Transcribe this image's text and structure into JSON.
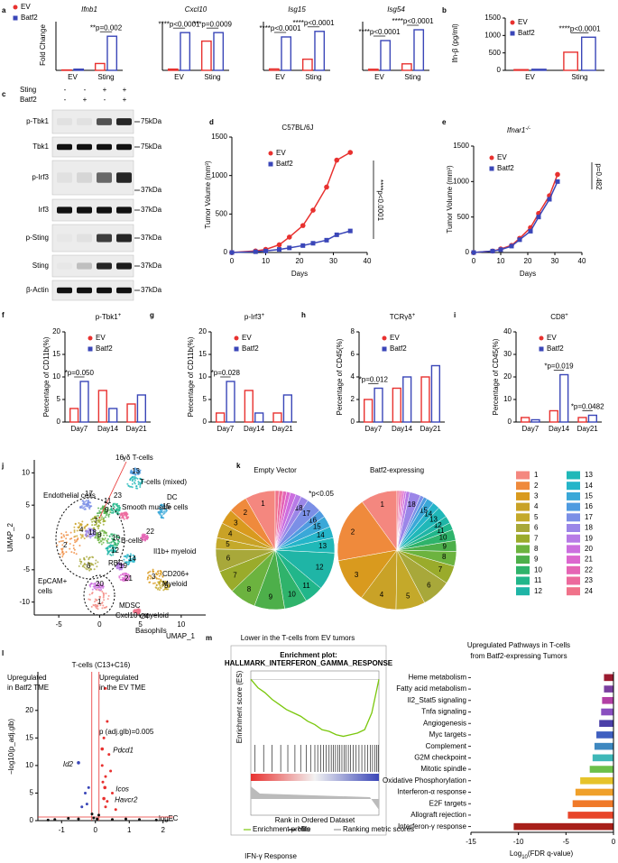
{
  "series_colors": [
    "#e8312f",
    "#3a46b8"
  ],
  "legend": [
    "EV",
    "Batf2"
  ],
  "panel_letters": [
    "a",
    "b",
    "c",
    "d",
    "e",
    "f",
    "g",
    "h",
    "i",
    "j",
    "k",
    "l",
    "m"
  ],
  "a": {
    "ylabel": "Fold Change",
    "groups": [
      "EV",
      "Sting"
    ],
    "plots": [
      {
        "title": "Ifnb1",
        "ylim": [
          0,
          2500
        ],
        "values": [
          [
            20,
            60
          ],
          [
            350,
            1750
          ]
        ],
        "p": [
          null,
          "**p=0.002"
        ]
      },
      {
        "title": "Cxcl10",
        "ylim": [
          0,
          80
        ],
        "values": [
          [
            2,
            62
          ],
          [
            48,
            62
          ]
        ],
        "p": [
          "****p<0.0001",
          "***p=0.0009"
        ]
      },
      {
        "title": "Isg15",
        "ylim": [
          0,
          35
        ],
        "values": [
          [
            1,
            24
          ],
          [
            8,
            28
          ]
        ],
        "p": [
          "****p<0.0001",
          "****p<0.0001"
        ]
      },
      {
        "title": "Isg54",
        "ylim": [
          0,
          90
        ],
        "values": [
          [
            2,
            55
          ],
          [
            12,
            75
          ]
        ],
        "p": [
          "****p<0.0001",
          "****p<0.0001"
        ]
      }
    ]
  },
  "b": {
    "ylabel": "Ifn-β (pg/ml)",
    "groups": [
      "EV",
      "Sting"
    ],
    "ylim": [
      0,
      1500
    ],
    "yticks": [
      0,
      500,
      1000,
      1500
    ],
    "values": [
      [
        20,
        30
      ],
      [
        520,
        950
      ]
    ],
    "p": [
      null,
      "****p<0.0001"
    ]
  },
  "c": {
    "treatments": [
      {
        "name": "Sting",
        "signs": [
          "-",
          "-",
          "+",
          "+"
        ]
      },
      {
        "name": "Batf2",
        "signs": [
          "-",
          "+",
          "-",
          "+"
        ]
      }
    ],
    "rows": [
      {
        "name": "p-Tbk1",
        "kda": "75kDa"
      },
      {
        "name": "Tbk1",
        "kda": "75kDa"
      },
      {
        "name": "p-Irf3",
        "kda": "37kDa"
      },
      {
        "name": "Irf3",
        "kda": "37kDa"
      },
      {
        "name": "p-Sting",
        "kda": "37kDa"
      },
      {
        "name": "Sting",
        "kda": "37kDa"
      },
      {
        "name": "β-Actin",
        "kda": "37kDa"
      }
    ]
  },
  "d": {
    "type": "line",
    "title": "C57BL/6J",
    "ylabel": "Tumor Volume (mm³)",
    "xlabel": "Days",
    "x": [
      0,
      7,
      10,
      14,
      17,
      21,
      24,
      28,
      31,
      35
    ],
    "series": [
      {
        "name": "EV",
        "values": [
          0,
          20,
          40,
          100,
          200,
          350,
          550,
          850,
          1200,
          1300
        ]
      },
      {
        "name": "Batf2",
        "values": [
          0,
          10,
          20,
          40,
          60,
          90,
          120,
          160,
          230,
          280
        ]
      }
    ],
    "xlim": [
      0,
      40
    ],
    "xticks": [
      0,
      10,
      20,
      30,
      40
    ],
    "ylim": [
      0,
      1500
    ],
    "yticks": [
      0,
      500,
      1000,
      1500
    ],
    "p": "****p<0.0001"
  },
  "e": {
    "type": "line",
    "title": "Ifnar1",
    "title_sup": "-/-",
    "ylabel": "Tumor Volume (mm³)",
    "xlabel": "Days",
    "x": [
      0,
      7,
      10,
      14,
      17,
      21,
      24,
      28,
      31
    ],
    "series": [
      {
        "name": "EV",
        "values": [
          0,
          20,
          50,
          100,
          200,
          350,
          550,
          800,
          1100
        ]
      },
      {
        "name": "Batf2",
        "values": [
          0,
          20,
          40,
          90,
          180,
          300,
          500,
          750,
          1000
        ]
      }
    ],
    "xlim": [
      0,
      40
    ],
    "xticks": [
      0,
      10,
      20,
      30,
      40
    ],
    "ylim": [
      0,
      1500
    ],
    "yticks": [
      0,
      500,
      1000,
      1500
    ],
    "p": "p=0.482"
  },
  "f": {
    "type": "bar",
    "title": "p-Tbk1",
    "title_sup": "+",
    "ylabel": "Percentage of CD11b(%)",
    "groups": [
      "Day7",
      "Day14",
      "Day21"
    ],
    "ylim": [
      0,
      20
    ],
    "yticks": [
      0,
      5,
      10,
      15,
      20
    ],
    "values": [
      [
        3,
        9
      ],
      [
        7,
        3
      ],
      [
        4,
        6
      ]
    ],
    "p": [
      "*p=0.050",
      null,
      null
    ]
  },
  "g": {
    "type": "bar",
    "title": "p-Irf3",
    "title_sup": "+",
    "ylabel": "Percentage of CD11b(%)",
    "groups": [
      "Day7",
      "Day14",
      "Day21"
    ],
    "ylim": [
      0,
      20
    ],
    "yticks": [
      0,
      5,
      10,
      15,
      20
    ],
    "values": [
      [
        2,
        9
      ],
      [
        7,
        2
      ],
      [
        2,
        6
      ]
    ],
    "p": [
      "*p=0.028",
      null,
      null
    ]
  },
  "h": {
    "type": "bar",
    "title": "TCRγδ",
    "title_sup": "+",
    "ylabel": "Percentage of CD45(%)",
    "groups": [
      "Day7",
      "Day14",
      "Day21"
    ],
    "ylim": [
      0,
      8
    ],
    "yticks": [
      0,
      2,
      4,
      6,
      8
    ],
    "values": [
      [
        2,
        3
      ],
      [
        3,
        4
      ],
      [
        4,
        5
      ]
    ],
    "p": [
      "*p=0.012",
      null,
      null
    ]
  },
  "i": {
    "type": "bar",
    "title": "CD8",
    "title_sup": "+",
    "ylabel": "Percentage of CD45(%)",
    "groups": [
      "Day7",
      "Day14",
      "Day21"
    ],
    "ylim": [
      0,
      40
    ],
    "yticks": [
      0,
      10,
      20,
      30,
      40
    ],
    "values": [
      [
        2,
        1
      ],
      [
        5,
        21
      ],
      [
        2,
        3
      ]
    ],
    "p": [
      null,
      "*p=0.019",
      "*p=0.0482"
    ]
  },
  "j": {
    "ylabel": "UMAP_2",
    "xlabel": "UMAP_1",
    "xlim": [
      -8,
      13
    ],
    "ylim": [
      -12,
      12
    ],
    "xticks": [
      -5,
      0,
      5,
      10
    ],
    "yticks": [
      -10,
      -5,
      0,
      5,
      10
    ],
    "labels": [
      {
        "text": "γδ T-cells",
        "color": "#e8312f"
      },
      {
        "text": "T-cells (mixed)"
      },
      {
        "text": "Endothelial cells"
      },
      {
        "text": "Smooth muscle cells"
      },
      {
        "text": "DC"
      },
      {
        "text": "B-cells"
      },
      {
        "text": "Il1b+ myeloid"
      },
      {
        "text": "RBC"
      },
      {
        "text": "CD206+"
      },
      {
        "text": "Myeloid"
      },
      {
        "text": "Cxcl10+ myeloid",
        "color": "#e8312f"
      },
      {
        "text": "EpCAM+"
      },
      {
        "text": "cells"
      },
      {
        "text": "MDSC"
      },
      {
        "text": "Basophils"
      }
    ],
    "cluster_labels": [
      {
        "text": "16",
        "color": "#e8312f"
      },
      {
        "text": "13"
      },
      {
        "text": "17"
      },
      {
        "text": "23"
      },
      {
        "text": "11",
        "color": "#e8312f"
      },
      {
        "text": "7"
      },
      {
        "text": "9"
      },
      {
        "text": "8"
      },
      {
        "text": "18"
      },
      {
        "text": "10"
      },
      {
        "text": "2"
      },
      {
        "text": "12"
      },
      {
        "text": "4"
      },
      {
        "text": "6"
      },
      {
        "text": "22"
      },
      {
        "text": "14"
      },
      {
        "text": "15"
      },
      {
        "text": "3"
      },
      {
        "text": "5"
      },
      {
        "text": "20"
      },
      {
        "text": "1"
      },
      {
        "text": "24"
      },
      {
        "text": "21"
      },
      {
        "text": "19"
      }
    ]
  },
  "k": {
    "type": "pie",
    "titles": [
      "Empty Vector",
      "Batf2-expressing"
    ],
    "note": "*p<0.05",
    "clusters": [
      "1",
      "2",
      "3",
      "4",
      "5",
      "6",
      "7",
      "8",
      "9",
      "10",
      "11",
      "12",
      "13",
      "14",
      "15",
      "16",
      "17",
      "18",
      "19",
      "20",
      "21",
      "22",
      "23",
      "24"
    ],
    "colors": [
      "#f4877f",
      "#ef8a3c",
      "#d99a1e",
      "#c9a227",
      "#c4a92a",
      "#a8a83a",
      "#9aab2b",
      "#6cb33f",
      "#4daf4a",
      "#2fb36b",
      "#21b68a",
      "#1fb5a6",
      "#20b8b8",
      "#25b5c9",
      "#3aa8d8",
      "#4f9be0",
      "#7b8fe6",
      "#9b86e8",
      "#b77be6",
      "#cc6fdf",
      "#dc67cf",
      "#e565b5",
      "#ec6a9d",
      "#f0728a"
    ],
    "ev": [
      8,
      5,
      4,
      4,
      3,
      6,
      6,
      7,
      8,
      6,
      5,
      10,
      4,
      3,
      3,
      2,
      4,
      2,
      1.5,
      1.5,
      1,
      1,
      1,
      1
    ],
    "batf2": [
      10,
      18,
      12,
      10,
      8,
      8,
      5,
      4,
      3,
      3,
      2,
      2,
      3,
      2,
      2,
      1,
      1,
      3,
      1,
      0.5,
      0.5,
      0.5,
      0.5,
      0.5
    ]
  },
  "l": {
    "type": "scatter",
    "title": "T-cells (C13+C16)",
    "left": [
      "Upregulated",
      "in Batf2 TME"
    ],
    "right": [
      "Upregulated",
      "in the EV TME"
    ],
    "ylabel": "−log10(p_adj.glb)",
    "xlabel": "logFC",
    "note": "p (adj.glb)=0.005",
    "xlim": [
      -1.7,
      2.3
    ],
    "xticks": [
      -1,
      0,
      1,
      2
    ],
    "ylim": [
      0,
      27
    ],
    "yticks": [
      0,
      5,
      10,
      15,
      20
    ],
    "point_groups": [
      {
        "color": "#e8312f",
        "points": [
          [
            0.3,
            24
          ],
          [
            0.35,
            18
          ],
          [
            0.25,
            15
          ],
          [
            0.4,
            12
          ],
          [
            0.2,
            10
          ],
          [
            0.3,
            8
          ],
          [
            0.22,
            7
          ],
          [
            0.28,
            6
          ],
          [
            0.5,
            5
          ],
          [
            0.25,
            4
          ],
          [
            0.35,
            3.5
          ],
          [
            0.6,
            2
          ],
          [
            0.3,
            2.5
          ],
          [
            0.45,
            9
          ],
          [
            0.2,
            13
          ]
        ]
      },
      {
        "color": "#3a46b8",
        "points": [
          [
            -0.5,
            10.5
          ],
          [
            -0.3,
            5
          ],
          [
            -0.25,
            3
          ],
          [
            -0.4,
            2.5
          ],
          [
            -0.2,
            6
          ]
        ]
      },
      {
        "color": "#111111",
        "points": [
          [
            -0.05,
            0.5
          ],
          [
            0.05,
            0.3
          ],
          [
            -1.2,
            0.2
          ],
          [
            1.8,
            0.1
          ],
          [
            -0.8,
            0.4
          ],
          [
            0.9,
            0.3
          ],
          [
            0.1,
            1
          ],
          [
            -0.1,
            1.2
          ],
          [
            0.5,
            0.2
          ],
          [
            -0.5,
            0.3
          ],
          [
            1.3,
            0.2
          ],
          [
            -1.4,
            0.1
          ]
        ]
      }
    ],
    "genes": [
      {
        "name": "Id2",
        "x": -0.5,
        "y": 10.5,
        "color": "#3a46b8"
      },
      {
        "name": "Pdcd1",
        "x": 0.2,
        "y": 13,
        "color": "#e8312f"
      },
      {
        "name": "Icos",
        "x": 0.28,
        "y": 6,
        "color": "#e8312f"
      },
      {
        "name": "Havcr2",
        "x": 0.25,
        "y": 4,
        "color": "#e8312f"
      }
    ]
  },
  "m": {
    "heading": "Lower in the T-cells from EV tumors",
    "plot_title": "Enrichment plot:",
    "set": "HALLMARK_INTERFERON_GAMMA_RESPONSE",
    "ylabel": "Enrichment score (ES)",
    "xlabel": "Rank in Ordered Dataset",
    "legend": [
      "Enrichment profile",
      "Hits",
      "Ranking metric scores"
    ],
    "caption": "IFN-γ Response",
    "xlim": [
      0,
      9000
    ],
    "ylim": [
      -0.38,
      0.05
    ],
    "x": [
      0,
      500,
      1000,
      1500,
      2000,
      2500,
      3000,
      3500,
      4000,
      4500,
      5000,
      5500,
      6000,
      6500,
      7000,
      7500,
      8000,
      8500,
      9000
    ],
    "es": [
      0,
      -0.05,
      -0.08,
      -0.12,
      -0.15,
      -0.18,
      -0.2,
      -0.22,
      -0.25,
      -0.27,
      -0.3,
      -0.31,
      -0.33,
      -0.34,
      -0.33,
      -0.32,
      -0.3,
      -0.2,
      0
    ],
    "hits": [
      300,
      900,
      1500,
      2100,
      2600,
      3100,
      3500,
      3900,
      4200,
      4500,
      4700,
      4900,
      5100,
      5300,
      5500,
      5650,
      5800,
      5950,
      6100,
      6250,
      6400,
      6550,
      6700,
      6850,
      7000,
      7200,
      7400,
      7600,
      7800,
      8000,
      8200,
      8400,
      8550,
      8700,
      8850,
      8950
    ]
  },
  "n": {
    "type": "bar",
    "title": [
      "Upregulated Pathways in T-cells",
      "from Batf2-expressing Tumors"
    ],
    "categories": [
      "Heme metabolism",
      "Fatty acid metabolism",
      "Il2_Stat5 signaling",
      "Tnfa signaling",
      "Angiogenesis",
      "Myc targets",
      "Complement",
      "G2M checkpoint",
      "Mitotic spindle",
      "Oxidative Phosphorylation",
      "Interferon-α response",
      "E2F targets",
      "Allograft rejection",
      "Interferon-γ response"
    ],
    "values": [
      -1,
      -1,
      -1.2,
      -1.3,
      -1.5,
      -1.8,
      -2,
      -2.2,
      -2.5,
      -3.5,
      -4,
      -4.3,
      -4.8,
      -10.5
    ],
    "colors": [
      "#9b1b30",
      "#7a3fa0",
      "#b23fa5",
      "#8a4fc0",
      "#4b3fa8",
      "#3f5fc0",
      "#3f88c0",
      "#3fb8b8",
      "#6cc04a",
      "#e6c32a",
      "#f0a02a",
      "#f07a2a",
      "#e8452a",
      "#a8201a"
    ],
    "xlim": [
      -15,
      0
    ],
    "xticks": [
      -15,
      -10,
      -5,
      0
    ],
    "xlabel": [
      "Log",
      "10",
      "(FDR q-value)"
    ]
  }
}
